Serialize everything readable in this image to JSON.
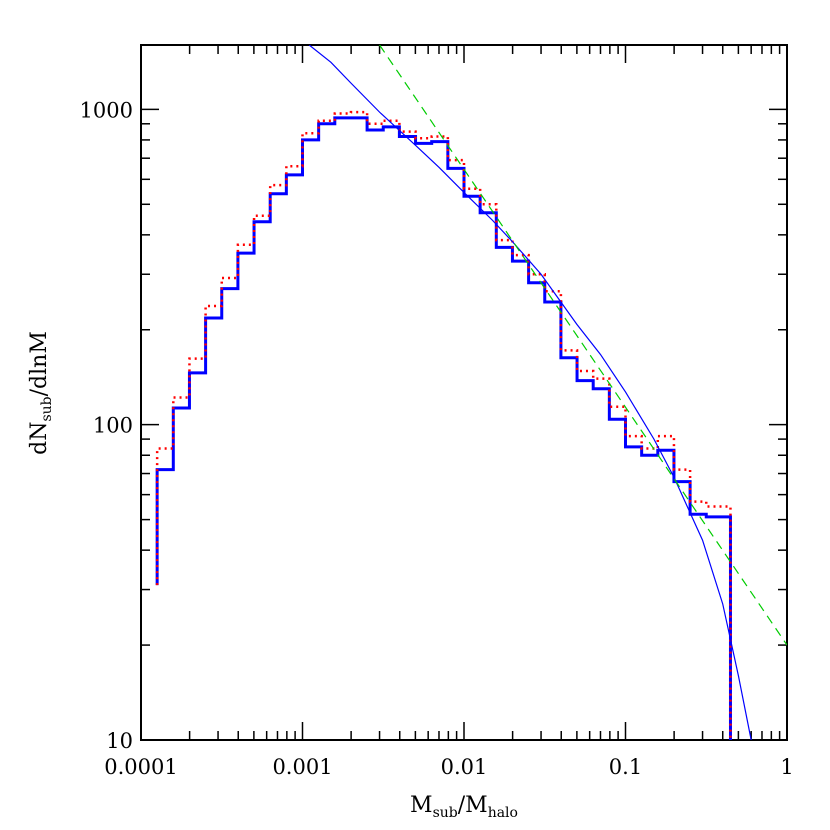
{
  "chart_data": {
    "type": "line",
    "xscale": "log",
    "yscale": "log",
    "xlim": [
      0.0001,
      1
    ],
    "ylim": [
      10,
      1600
    ],
    "grid": false,
    "xlabel": {
      "main": "M",
      "sub": "sub",
      "mid": "/M",
      "sub2": "halo"
    },
    "ylabel": {
      "pre": "dN",
      "sub": "sub",
      "post": "/dlnM"
    },
    "x_ticks": [
      {
        "value": 0.0001,
        "label": "0.0001"
      },
      {
        "value": 0.001,
        "label": "0.001"
      },
      {
        "value": 0.01,
        "label": "0.01"
      },
      {
        "value": 0.1,
        "label": "0.1"
      },
      {
        "value": 1,
        "label": "1"
      }
    ],
    "y_ticks": [
      {
        "value": 10,
        "label": "10"
      },
      {
        "value": 100,
        "label": "100"
      },
      {
        "value": 1000,
        "label": "1000"
      }
    ],
    "bin_edges_log10": [
      -3.9,
      -3.8,
      -3.7,
      -3.6,
      -3.5,
      -3.4,
      -3.3,
      -3.2,
      -3.1,
      -3.0,
      -2.9,
      -2.8,
      -2.7,
      -2.6,
      -2.5,
      -2.4,
      -2.3,
      -2.2,
      -2.1,
      -2.0,
      -1.9,
      -1.8,
      -1.7,
      -1.6,
      -1.5,
      -1.4,
      -1.3,
      -1.2,
      -1.1,
      -1.0,
      -0.9,
      -0.8,
      -0.7,
      -0.6,
      -0.5,
      -0.4,
      -0.35
    ],
    "series": [
      {
        "style": "histogram",
        "color": "#0000ff",
        "stroke_width": 3,
        "dash": "",
        "start_value": 31,
        "values": [
          72,
          113,
          146,
          218,
          270,
          350,
          440,
          540,
          620,
          800,
          900,
          940,
          940,
          860,
          880,
          820,
          780,
          790,
          650,
          530,
          470,
          365,
          330,
          282,
          245,
          163,
          138,
          130,
          104,
          85,
          80,
          83,
          66,
          52,
          51,
          51
        ],
        "end_value": 10
      },
      {
        "style": "histogram",
        "color": "#ff0000",
        "stroke_width": 2.5,
        "dash": "2 4",
        "start_value": 31,
        "values": [
          84,
          122,
          162,
          238,
          292,
          372,
          460,
          575,
          660,
          840,
          920,
          970,
          980,
          900,
          920,
          850,
          810,
          820,
          690,
          560,
          500,
          385,
          345,
          300,
          265,
          172,
          148,
          140,
          114,
          92,
          84,
          92,
          72,
          57,
          55,
          55
        ],
        "end_value": 10
      },
      {
        "style": "curve",
        "color": "#0000ff",
        "stroke_width": 1.2,
        "dash": "",
        "x": [
          0.0011,
          0.0015,
          0.002,
          0.003,
          0.005,
          0.007,
          0.01,
          0.015,
          0.02,
          0.03,
          0.05,
          0.07,
          0.1,
          0.15,
          0.2,
          0.3,
          0.4,
          0.5,
          0.6
        ],
        "values": [
          1600,
          1410,
          1210,
          980,
          770,
          655,
          545,
          445,
          380,
          300,
          208,
          167,
          127,
          90,
          68,
          43,
          27,
          16,
          10
        ]
      },
      {
        "style": "curve",
        "color": "#00cc00",
        "stroke_width": 1.2,
        "dash": "9 6",
        "x": [
          0.003,
          1
        ],
        "values": [
          1600,
          20
        ]
      }
    ]
  }
}
